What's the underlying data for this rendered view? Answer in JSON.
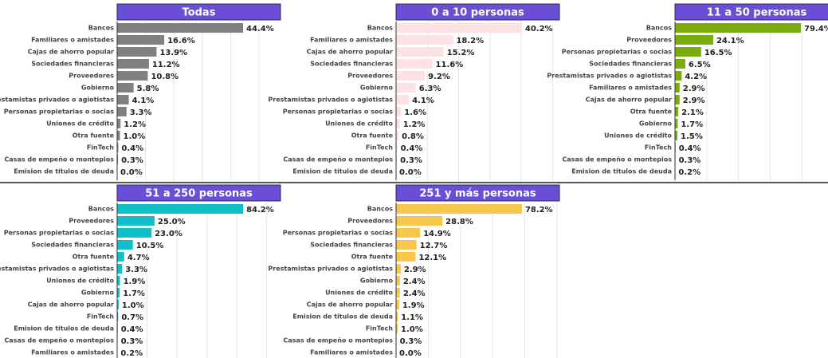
{
  "chart_data": [
    {
      "type": "bar",
      "orientation": "horizontal",
      "title": "Todas",
      "color": "#808080",
      "xlim": [
        0,
        57.6
      ],
      "xticks": [
        0,
        10,
        20,
        30,
        40,
        50
      ],
      "grid": true,
      "categories": [
        "Bancos",
        "Familiares o amistades",
        "Cajas de ahorro popular",
        "Sociedades financieras",
        "Proveedores",
        "Gobierno",
        "Prestamistas privados o agiotistas",
        "Personas propietarias o socias",
        "Uniones de crédito",
        "Otra fuente",
        "FinTech",
        "Casas de empeño o montepios",
        "Emision de titulos de deuda"
      ],
      "values": [
        44.4,
        16.6,
        13.9,
        11.2,
        10.8,
        5.8,
        4.1,
        3.3,
        1.2,
        1.0,
        0.4,
        0.3,
        0.0
      ],
      "value_labels": [
        "44.4%",
        "16.6%",
        "13.9%",
        "11.2%",
        "10.8%",
        "5.8%",
        "4.1%",
        "3.3%",
        "1.2%",
        "1.0%",
        "0.4%",
        "0.3%",
        "0.0%"
      ]
    },
    {
      "type": "bar",
      "orientation": "horizontal",
      "title": "0 a 10 personas",
      "color": "#fde2e4",
      "xlim": [
        0,
        52.2
      ],
      "xticks": [
        0,
        10,
        20,
        30,
        40,
        50
      ],
      "grid": true,
      "categories": [
        "Bancos",
        "Familiares o amistades",
        "Cajas de ahorro popular",
        "Sociedades financieras",
        "Proveedores",
        "Gobierno",
        "Prestamistas privados o agiotistas",
        "Personas propietarias o socias",
        "Uniones de crédito",
        "Otra fuente",
        "FinTech",
        "Casas de empeño o montepios",
        "Emision de titulos de deuda"
      ],
      "values": [
        40.2,
        18.2,
        15.2,
        11.6,
        9.2,
        6.3,
        4.1,
        1.6,
        1.2,
        0.8,
        0.4,
        0.3,
        0.0
      ],
      "value_labels": [
        "40.2%",
        "18.2%",
        "15.2%",
        "11.6%",
        "9.2%",
        "6.3%",
        "4.1%",
        "1.6%",
        "1.2%",
        "0.8%",
        "0.4%",
        "0.3%",
        "0.0%"
      ]
    },
    {
      "type": "bar",
      "orientation": "horizontal",
      "title": "11 a 50 personas",
      "color": "#7aab0f",
      "xlim": [
        0,
        103.0
      ],
      "xticks": [
        0,
        20,
        40,
        60,
        80,
        100
      ],
      "grid": true,
      "categories": [
        "Bancos",
        "Proveedores",
        "Personas propietarias o socias",
        "Sociedades financieras",
        "Prestamistas privados o agiotistas",
        "Familiares o amistades",
        "Cajas de ahorro popular",
        "Otra fuente",
        "Gobierno",
        "Uniones de crédito",
        "FinTech",
        "Casas de empeño o montepios",
        "Emision de titulos de deuda"
      ],
      "values": [
        79.4,
        24.1,
        16.5,
        6.5,
        4.2,
        2.9,
        2.9,
        2.1,
        1.7,
        1.5,
        0.4,
        0.3,
        0.2
      ],
      "value_labels": [
        "79.4%",
        "24.1%",
        "16.5%",
        "6.5%",
        "4.2%",
        "2.9%",
        "2.9%",
        "2.1%",
        "1.7%",
        "1.5%",
        "0.4%",
        "0.3%",
        "0.2%"
      ]
    },
    {
      "type": "bar",
      "orientation": "horizontal",
      "title": "51 a 250 personas",
      "color": "#0fbfc9",
      "xlim": [
        0,
        109.2
      ],
      "xticks": [
        0,
        20,
        40,
        60,
        80,
        100
      ],
      "grid": true,
      "categories": [
        "Bancos",
        "Proveedores",
        "Personas propietarias o socias",
        "Sociedades financieras",
        "Otra fuente",
        "Prestamistas privados o agiotistas",
        "Uniones de crédito",
        "Gobierno",
        "Cajas de ahorro popular",
        "FinTech",
        "Emision de titulos de deuda",
        "Casas de empeño o montepios",
        "Familiares o amistades"
      ],
      "values": [
        84.2,
        25.0,
        23.0,
        10.5,
        4.7,
        3.3,
        1.9,
        1.7,
        1.0,
        0.7,
        0.4,
        0.3,
        0.2
      ],
      "value_labels": [
        "84.2%",
        "25.0%",
        "23.0%",
        "10.5%",
        "4.7%",
        "3.3%",
        "1.9%",
        "1.7%",
        "1.0%",
        "0.7%",
        "0.4%",
        "0.3%",
        "0.2%"
      ]
    },
    {
      "type": "bar",
      "orientation": "horizontal",
      "title": "251 y más personas",
      "color": "#f7c64a",
      "xlim": [
        0,
        101.5
      ],
      "xticks": [
        0,
        20,
        40,
        60,
        80,
        100
      ],
      "grid": true,
      "categories": [
        "Bancos",
        "Proveedores",
        "Personas propietarias o socias",
        "Sociedades financieras",
        "Otra fuente",
        "Prestamistas privados o agiotistas",
        "Gobierno",
        "Uniones de crédito",
        "Cajas de ahorro popular",
        "Emision de titulos de deuda",
        "FinTech",
        "Casas de empeño o montepios",
        "Familiares o amistades"
      ],
      "values": [
        78.2,
        28.8,
        14.9,
        12.7,
        12.1,
        2.9,
        2.4,
        2.4,
        1.9,
        1.1,
        1.0,
        0.3,
        0.0
      ],
      "value_labels": [
        "78.2%",
        "28.8%",
        "14.9%",
        "12.7%",
        "12.1%",
        "2.9%",
        "2.4%",
        "2.4%",
        "1.9%",
        "1.1%",
        "1.0%",
        "0.3%",
        "0.0%"
      ]
    }
  ]
}
